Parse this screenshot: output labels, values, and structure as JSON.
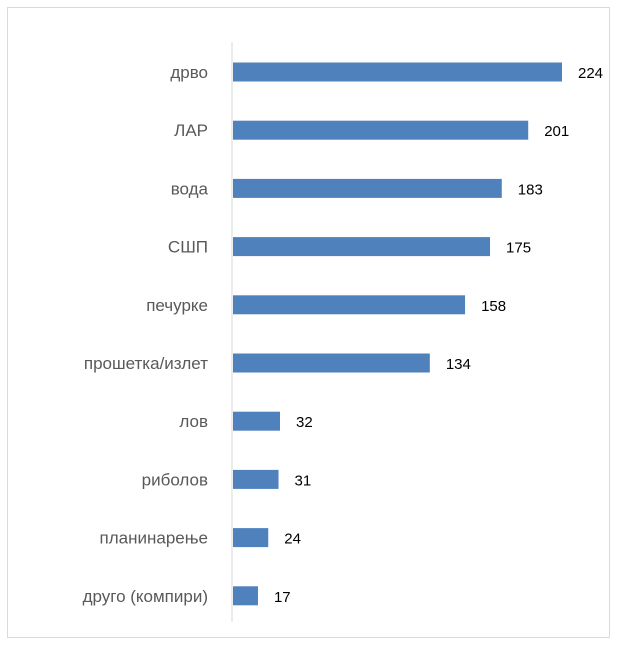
{
  "chart_data": {
    "type": "bar",
    "orientation": "horizontal",
    "categories": [
      "дрво",
      "ЛАР",
      "вода",
      "СШП",
      "печурке",
      "прошетка/излет",
      "лов",
      "риболов",
      "планинарење",
      "друго (компири)"
    ],
    "values": [
      224,
      201,
      183,
      175,
      158,
      134,
      32,
      31,
      24,
      17
    ],
    "title": "",
    "xlabel": "",
    "ylabel": "",
    "xlim": [
      0,
      224
    ],
    "grid": false,
    "legend": "none",
    "data_labels": true,
    "bar_color": "#4f81bd",
    "axis_color": "#d9d9d9",
    "label_color": "#595959"
  }
}
